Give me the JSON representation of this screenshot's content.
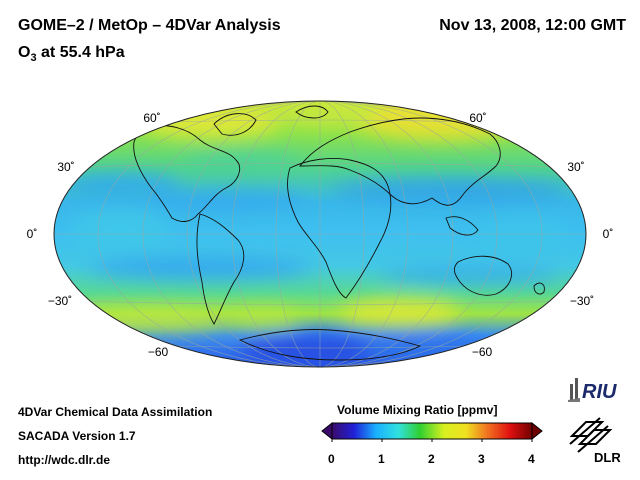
{
  "header": {
    "title": "GOME–2 / MetOp – 4DVar Analysis",
    "datetime": "Nov 13, 2008, 12:00 GMT",
    "subtitle_prefix": "O",
    "subtitle_sub": "3",
    "subtitle_suffix": " at 55.4 hPa"
  },
  "map": {
    "projection": "Hammer-Aitoff global",
    "field": "Ozone volume mixing ratio",
    "lat_labels_left": [
      "60˚",
      "30˚",
      "0˚",
      "−30˚",
      "−60"
    ],
    "lat_labels_right": [
      "60˚",
      "30˚",
      "0˚",
      "−30˚",
      "−60"
    ]
  },
  "footer": {
    "line1": "4DVar Chemical Data Assimilation",
    "line2": "SACADA Version 1.7",
    "line3": "http://wdc.dlr.de"
  },
  "colorbar": {
    "title": "Volume Mixing Ratio [ppmv]",
    "ticks": [
      "0",
      "1",
      "2",
      "3",
      "4"
    ],
    "colors": [
      "#3a0a6a",
      "#2020d8",
      "#1ab0ff",
      "#30e0e0",
      "#30d030",
      "#d8f020",
      "#f0e020",
      "#f07020",
      "#e01010",
      "#700000"
    ]
  },
  "logos": {
    "riu": "RIU",
    "dlr": "DLR"
  }
}
